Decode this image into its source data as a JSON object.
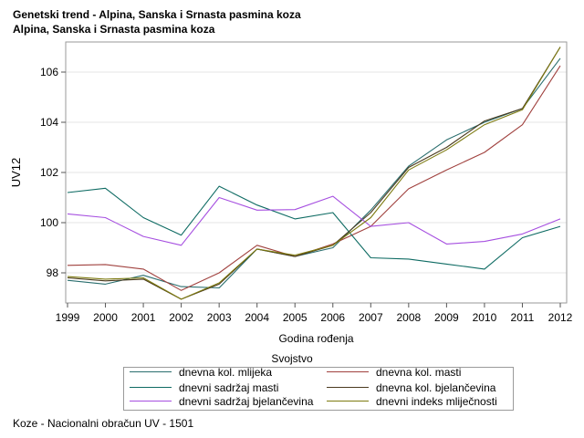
{
  "titles": {
    "line1": "Genetski trend - Alpina, Sanska i Srnasta pasmina koza",
    "line2": "Alpina, Sanska i Srnasta pasmina koza"
  },
  "footnote": "Koze - Nacionalni obračun UV - 1501",
  "chart_data": {
    "type": "line",
    "xlabel": "Godina rođenja",
    "ylabel": "UV12",
    "x": [
      1999,
      2000,
      2001,
      2002,
      2003,
      2004,
      2005,
      2006,
      2007,
      2008,
      2009,
      2010,
      2011,
      2012
    ],
    "xlim": [
      1999,
      2012
    ],
    "ylim": [
      96.8,
      107.2
    ],
    "yticks": [
      98,
      100,
      102,
      104,
      106
    ],
    "grid": "horizontal",
    "legend_title": "Svojstvo",
    "legend_position": "bottom",
    "series": [
      {
        "name": "dnevna kol. mlijeka",
        "color": "#2a6e6e",
        "values": [
          97.7,
          97.55,
          97.9,
          97.45,
          97.4,
          98.95,
          98.65,
          99.0,
          100.5,
          102.25,
          103.3,
          104.0,
          104.55,
          106.55
        ]
      },
      {
        "name": "dnevna kol. masti",
        "color": "#a0413e",
        "values": [
          98.3,
          98.33,
          98.15,
          97.3,
          98.0,
          99.1,
          98.65,
          99.15,
          99.85,
          101.35,
          102.1,
          102.8,
          103.9,
          106.25
        ]
      },
      {
        "name": "dnevni sadržaj masti",
        "color": "#0e6b63",
        "values": [
          101.2,
          101.37,
          100.2,
          99.5,
          101.45,
          100.7,
          100.15,
          100.4,
          98.6,
          98.55,
          98.35,
          98.15,
          99.4,
          99.85
        ]
      },
      {
        "name": "dnevna kol. bjelančevina",
        "color": "#4a3a1e",
        "values": [
          97.8,
          97.68,
          97.75,
          96.95,
          97.55,
          98.95,
          98.65,
          99.1,
          100.4,
          102.2,
          103.0,
          104.05,
          104.55,
          107.0
        ]
      },
      {
        "name": "dnevni sadržaj bjelančevina",
        "color": "#a64fe0",
        "values": [
          100.35,
          100.2,
          99.45,
          99.1,
          101.0,
          100.5,
          100.52,
          101.05,
          99.85,
          100.0,
          99.15,
          99.25,
          99.55,
          100.15
        ]
      },
      {
        "name": "dnevni indeks mliječnosti",
        "color": "#7d7a10",
        "values": [
          97.85,
          97.75,
          97.8,
          96.95,
          97.6,
          98.95,
          98.7,
          99.1,
          100.2,
          102.1,
          102.9,
          103.9,
          104.5,
          107.0
        ]
      }
    ]
  }
}
